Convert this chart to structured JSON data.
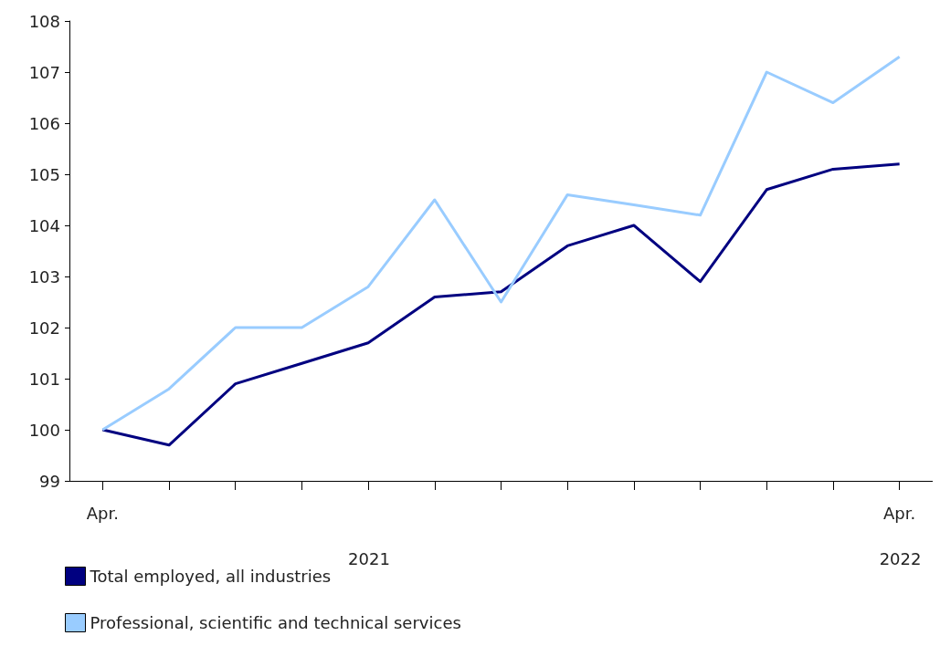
{
  "chart_data": {
    "type": "line",
    "categories": [
      "Apr.",
      null,
      null,
      null,
      null,
      null,
      null,
      null,
      null,
      null,
      null,
      null,
      "Apr."
    ],
    "series": [
      {
        "name": "Total employed, all industries",
        "color": "#000080",
        "values": [
          100,
          99.7,
          100.9,
          101.3,
          101.7,
          102.6,
          102.7,
          103.6,
          104.0,
          102.9,
          104.7,
          105.1,
          105.2
        ]
      },
      {
        "name": "Professional, scientific and technical services",
        "color": "#99ccff",
        "values": [
          100,
          100.8,
          102.0,
          102.0,
          102.8,
          104.5,
          102.5,
          104.6,
          104.4,
          104.2,
          107.0,
          106.4,
          107.3
        ]
      }
    ],
    "ylim": [
      99,
      108
    ],
    "yticks": [
      99,
      100,
      101,
      102,
      103,
      104,
      105,
      106,
      107,
      108
    ],
    "annotations": [
      "2021",
      "2022"
    ],
    "grid": false,
    "legend": "bottom left",
    "marker": "none",
    "line_style": "solid"
  }
}
